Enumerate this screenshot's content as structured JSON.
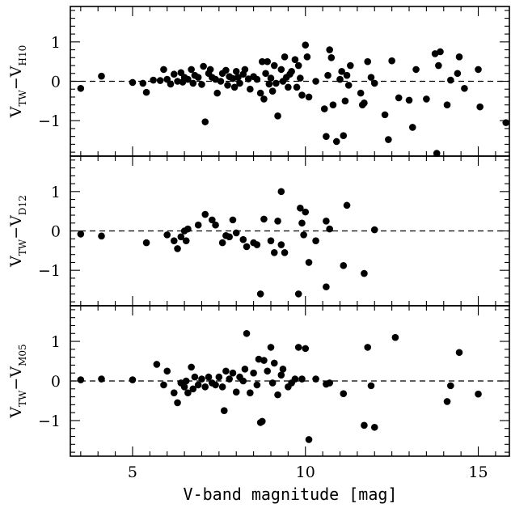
{
  "chart_data": {
    "type": "scatter",
    "xlabel": "V-band magnitude [mag]",
    "xlim": [
      3.2,
      15.9
    ],
    "x_ticks": [
      5,
      10,
      15
    ],
    "grid": false,
    "panels": [
      {
        "id": "h10",
        "ylabel_main": "V",
        "ylabel_sub1": "TW",
        "ylabel_minus": "−V",
        "ylabel_sub2": "H10",
        "ylim": [
          -1.9,
          1.9
        ],
        "y_ticks": [
          -1,
          0,
          1
        ],
        "y_tick_labels": [
          "−1",
          "0",
          "1"
        ],
        "reference_line": 0,
        "points": [
          [
            3.5,
            -0.18
          ],
          [
            4.1,
            0.13
          ],
          [
            5.0,
            -0.03
          ],
          [
            5.3,
            -0.05
          ],
          [
            5.4,
            -0.28
          ],
          [
            5.6,
            0.03
          ],
          [
            5.8,
            0.02
          ],
          [
            5.9,
            0.3
          ],
          [
            6.0,
            0.05
          ],
          [
            6.1,
            -0.07
          ],
          [
            6.2,
            0.18
          ],
          [
            6.3,
            0.0
          ],
          [
            6.4,
            0.22
          ],
          [
            6.45,
            -0.02
          ],
          [
            6.5,
            0.1
          ],
          [
            6.6,
            0.05
          ],
          [
            6.7,
            0.3
          ],
          [
            6.75,
            -0.05
          ],
          [
            6.8,
            0.15
          ],
          [
            6.9,
            0.1
          ],
          [
            7.0,
            -0.08
          ],
          [
            7.05,
            0.38
          ],
          [
            7.1,
            -1.03
          ],
          [
            7.2,
            0.2
          ],
          [
            7.25,
            0.3
          ],
          [
            7.3,
            0.1
          ],
          [
            7.4,
            0.05
          ],
          [
            7.45,
            -0.3
          ],
          [
            7.55,
            0.0
          ],
          [
            7.6,
            0.2
          ],
          [
            7.7,
            0.28
          ],
          [
            7.75,
            -0.1
          ],
          [
            7.8,
            0.12
          ],
          [
            7.9,
            0.07
          ],
          [
            7.95,
            -0.15
          ],
          [
            8.0,
            0.25
          ],
          [
            8.05,
            0.1
          ],
          [
            8.1,
            -0.05
          ],
          [
            8.2,
            0.18
          ],
          [
            8.25,
            0.3
          ],
          [
            8.35,
            0.06
          ],
          [
            8.4,
            -0.2
          ],
          [
            8.5,
            0.12
          ],
          [
            8.6,
            0.05
          ],
          [
            8.7,
            -0.3
          ],
          [
            8.75,
            0.5
          ],
          [
            8.8,
            -0.45
          ],
          [
            8.85,
            0.2
          ],
          [
            8.9,
            0.5
          ],
          [
            8.95,
            -0.07
          ],
          [
            9.0,
            0.08
          ],
          [
            9.05,
            -0.25
          ],
          [
            9.1,
            0.4
          ],
          [
            9.15,
            -0.05
          ],
          [
            9.2,
            -0.88
          ],
          [
            9.3,
            0.3
          ],
          [
            9.35,
            0.0
          ],
          [
            9.4,
            0.62
          ],
          [
            9.45,
            0.1
          ],
          [
            9.5,
            -0.15
          ],
          [
            9.55,
            0.18
          ],
          [
            9.6,
            0.25
          ],
          [
            9.7,
            0.55
          ],
          [
            9.75,
            -0.15
          ],
          [
            9.8,
            0.4
          ],
          [
            9.85,
            0.08
          ],
          [
            9.9,
            -0.35
          ],
          [
            10.0,
            0.92
          ],
          [
            10.05,
            0.62
          ],
          [
            10.1,
            -0.4
          ],
          [
            10.3,
            0.0
          ],
          [
            10.55,
            -0.7
          ],
          [
            10.6,
            -1.4
          ],
          [
            10.65,
            0.15
          ],
          [
            10.7,
            0.8
          ],
          [
            10.75,
            0.6
          ],
          [
            10.8,
            -0.6
          ],
          [
            10.9,
            -1.53
          ],
          [
            11.0,
            0.05
          ],
          [
            11.05,
            0.25
          ],
          [
            11.1,
            -1.38
          ],
          [
            11.15,
            -0.5
          ],
          [
            11.2,
            0.15
          ],
          [
            11.25,
            -0.1
          ],
          [
            11.3,
            0.4
          ],
          [
            11.6,
            -0.3
          ],
          [
            11.65,
            -0.6
          ],
          [
            11.7,
            -0.55
          ],
          [
            11.8,
            0.5
          ],
          [
            11.9,
            0.1
          ],
          [
            12.0,
            -0.05
          ],
          [
            12.3,
            -0.85
          ],
          [
            12.4,
            -1.48
          ],
          [
            12.5,
            0.52
          ],
          [
            12.7,
            -0.42
          ],
          [
            13.0,
            -0.48
          ],
          [
            13.1,
            -1.17
          ],
          [
            13.2,
            0.3
          ],
          [
            13.5,
            -0.45
          ],
          [
            13.75,
            0.7
          ],
          [
            13.8,
            -1.83
          ],
          [
            13.85,
            0.4
          ],
          [
            13.9,
            0.75
          ],
          [
            14.1,
            -0.6
          ],
          [
            14.2,
            0.03
          ],
          [
            14.4,
            0.2
          ],
          [
            14.45,
            0.62
          ],
          [
            14.6,
            -0.18
          ],
          [
            15.0,
            0.3
          ],
          [
            15.05,
            -0.65
          ],
          [
            15.8,
            -1.05
          ]
        ]
      },
      {
        "id": "d12",
        "ylabel_main": "V",
        "ylabel_sub1": "TW",
        "ylabel_minus": "−V",
        "ylabel_sub2": "D12",
        "ylim": [
          -1.9,
          1.9
        ],
        "y_ticks": [
          -1,
          0,
          1
        ],
        "y_tick_labels": [
          "−1",
          "0",
          "1"
        ],
        "reference_line": 0,
        "points": [
          [
            3.5,
            -0.08
          ],
          [
            4.1,
            -0.13
          ],
          [
            5.4,
            -0.3
          ],
          [
            6.0,
            -0.1
          ],
          [
            6.2,
            -0.25
          ],
          [
            6.3,
            -0.45
          ],
          [
            6.4,
            -0.15
          ],
          [
            6.5,
            0.0
          ],
          [
            6.55,
            -0.25
          ],
          [
            6.6,
            0.05
          ],
          [
            6.9,
            0.15
          ],
          [
            7.1,
            0.42
          ],
          [
            7.3,
            0.28
          ],
          [
            7.4,
            0.15
          ],
          [
            7.6,
            -0.3
          ],
          [
            7.7,
            -0.12
          ],
          [
            7.8,
            -0.15
          ],
          [
            7.9,
            0.28
          ],
          [
            8.0,
            -0.05
          ],
          [
            8.2,
            -0.22
          ],
          [
            8.3,
            -0.4
          ],
          [
            8.5,
            -0.3
          ],
          [
            8.6,
            -0.35
          ],
          [
            8.7,
            -1.6
          ],
          [
            8.8,
            0.3
          ],
          [
            9.0,
            -0.25
          ],
          [
            9.1,
            -0.55
          ],
          [
            9.2,
            0.25
          ],
          [
            9.3,
            -0.35
          ],
          [
            9.3,
            1.0
          ],
          [
            9.4,
            -0.55
          ],
          [
            9.8,
            -1.6
          ],
          [
            9.85,
            0.58
          ],
          [
            9.9,
            0.2
          ],
          [
            9.95,
            -0.1
          ],
          [
            10.0,
            0.48
          ],
          [
            10.1,
            -0.8
          ],
          [
            10.3,
            -0.25
          ],
          [
            10.6,
            0.25
          ],
          [
            10.7,
            0.05
          ],
          [
            10.6,
            -1.42
          ],
          [
            11.1,
            -0.88
          ],
          [
            11.2,
            0.65
          ],
          [
            11.7,
            -1.08
          ],
          [
            12.0,
            0.03
          ]
        ]
      },
      {
        "id": "m05",
        "ylabel_main": "V",
        "ylabel_sub1": "TW",
        "ylabel_minus": "−V",
        "ylabel_sub2": "M05",
        "ylim": [
          -1.9,
          1.9
        ],
        "y_ticks": [
          -1,
          0,
          1
        ],
        "y_tick_labels": [
          "−1",
          "0",
          "1"
        ],
        "reference_line": 0,
        "points": [
          [
            3.5,
            0.03
          ],
          [
            4.1,
            0.05
          ],
          [
            5.0,
            0.03
          ],
          [
            5.7,
            0.42
          ],
          [
            5.9,
            -0.1
          ],
          [
            6.0,
            0.25
          ],
          [
            6.2,
            -0.3
          ],
          [
            6.3,
            -0.55
          ],
          [
            6.4,
            -0.05
          ],
          [
            6.5,
            -0.15
          ],
          [
            6.55,
            0.0
          ],
          [
            6.6,
            -0.3
          ],
          [
            6.7,
            0.35
          ],
          [
            6.75,
            -0.2
          ],
          [
            6.8,
            0.1
          ],
          [
            6.9,
            -0.1
          ],
          [
            7.0,
            0.05
          ],
          [
            7.1,
            -0.15
          ],
          [
            7.2,
            0.1
          ],
          [
            7.3,
            -0.05
          ],
          [
            7.4,
            -0.1
          ],
          [
            7.5,
            0.1
          ],
          [
            7.6,
            -0.15
          ],
          [
            7.65,
            -0.75
          ],
          [
            7.7,
            0.25
          ],
          [
            7.8,
            0.05
          ],
          [
            7.9,
            0.2
          ],
          [
            8.0,
            -0.28
          ],
          [
            8.1,
            0.1
          ],
          [
            8.2,
            0.0
          ],
          [
            8.25,
            0.3
          ],
          [
            8.3,
            1.2
          ],
          [
            8.4,
            -0.3
          ],
          [
            8.5,
            0.2
          ],
          [
            8.6,
            -0.1
          ],
          [
            8.65,
            0.55
          ],
          [
            8.7,
            -1.05
          ],
          [
            8.75,
            -1.02
          ],
          [
            8.8,
            0.52
          ],
          [
            8.9,
            0.25
          ],
          [
            9.0,
            0.85
          ],
          [
            9.05,
            -0.05
          ],
          [
            9.1,
            0.45
          ],
          [
            9.2,
            -0.35
          ],
          [
            9.3,
            0.15
          ],
          [
            9.35,
            0.3
          ],
          [
            9.5,
            -0.15
          ],
          [
            9.6,
            -0.05
          ],
          [
            9.7,
            0.05
          ],
          [
            9.8,
            0.85
          ],
          [
            9.9,
            0.05
          ],
          [
            10.0,
            0.82
          ],
          [
            10.1,
            -1.48
          ],
          [
            10.3,
            0.05
          ],
          [
            10.6,
            -0.08
          ],
          [
            10.7,
            -0.05
          ],
          [
            11.1,
            -0.32
          ],
          [
            11.7,
            -1.12
          ],
          [
            11.8,
            0.85
          ],
          [
            11.9,
            -0.12
          ],
          [
            12.0,
            -1.17
          ],
          [
            12.6,
            1.1
          ],
          [
            14.1,
            -0.52
          ],
          [
            14.2,
            -0.12
          ],
          [
            14.45,
            0.72
          ],
          [
            15.0,
            -0.33
          ]
        ]
      }
    ]
  }
}
